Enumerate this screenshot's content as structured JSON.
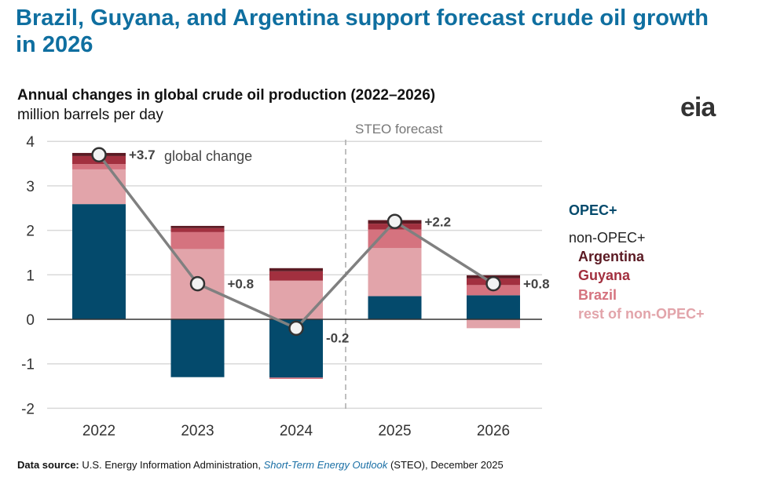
{
  "title": "Brazil, Guyana, and Argentina support forecast crude oil growth in 2026",
  "logo": "eia",
  "source": {
    "label": "Data source:",
    "pre": " U.S. Energy Information Administration, ",
    "italic": "Short-Term Energy Outlook",
    "post": " (STEO), December 2025"
  },
  "chart_data": {
    "type": "bar",
    "title": "Annual changes in global crude oil production (2022–2026)",
    "ylabel": "million barrels per day",
    "categories": [
      "2022",
      "2023",
      "2024",
      "2025",
      "2026"
    ],
    "ylim": [
      -2,
      4
    ],
    "yticks": [
      -2,
      -1,
      0,
      1,
      2,
      3,
      4
    ],
    "forecast_label": "STEO forecast",
    "series": [
      {
        "name": "OPEC+",
        "color": "#044a6c",
        "values": [
          2.59,
          -1.3,
          -1.31,
          0.52,
          0.54
        ]
      },
      {
        "name": "rest of non-OPEC+",
        "color": "#e2a4aa",
        "values": [
          0.78,
          1.58,
          0.87,
          1.08,
          -0.2
        ]
      },
      {
        "name": "Brazil",
        "color": "#d5737f",
        "values": [
          0.12,
          0.38,
          -0.03,
          0.42,
          0.23
        ]
      },
      {
        "name": "Guyana",
        "color": "#a2303f",
        "values": [
          0.18,
          0.09,
          0.21,
          0.13,
          0.15
        ]
      },
      {
        "name": "Argentina",
        "color": "#5b1a23",
        "values": [
          0.07,
          0.05,
          0.07,
          0.08,
          0.07
        ]
      }
    ],
    "line": {
      "name": "global change",
      "values": [
        3.7,
        0.8,
        -0.2,
        2.2,
        0.8
      ],
      "labels": [
        "+3.7",
        "+0.8",
        "-0.2",
        "+2.2",
        "+0.8"
      ]
    },
    "legend": {
      "opec": "OPEC+",
      "nonopec": "non-OPEC+",
      "position": "right"
    }
  }
}
